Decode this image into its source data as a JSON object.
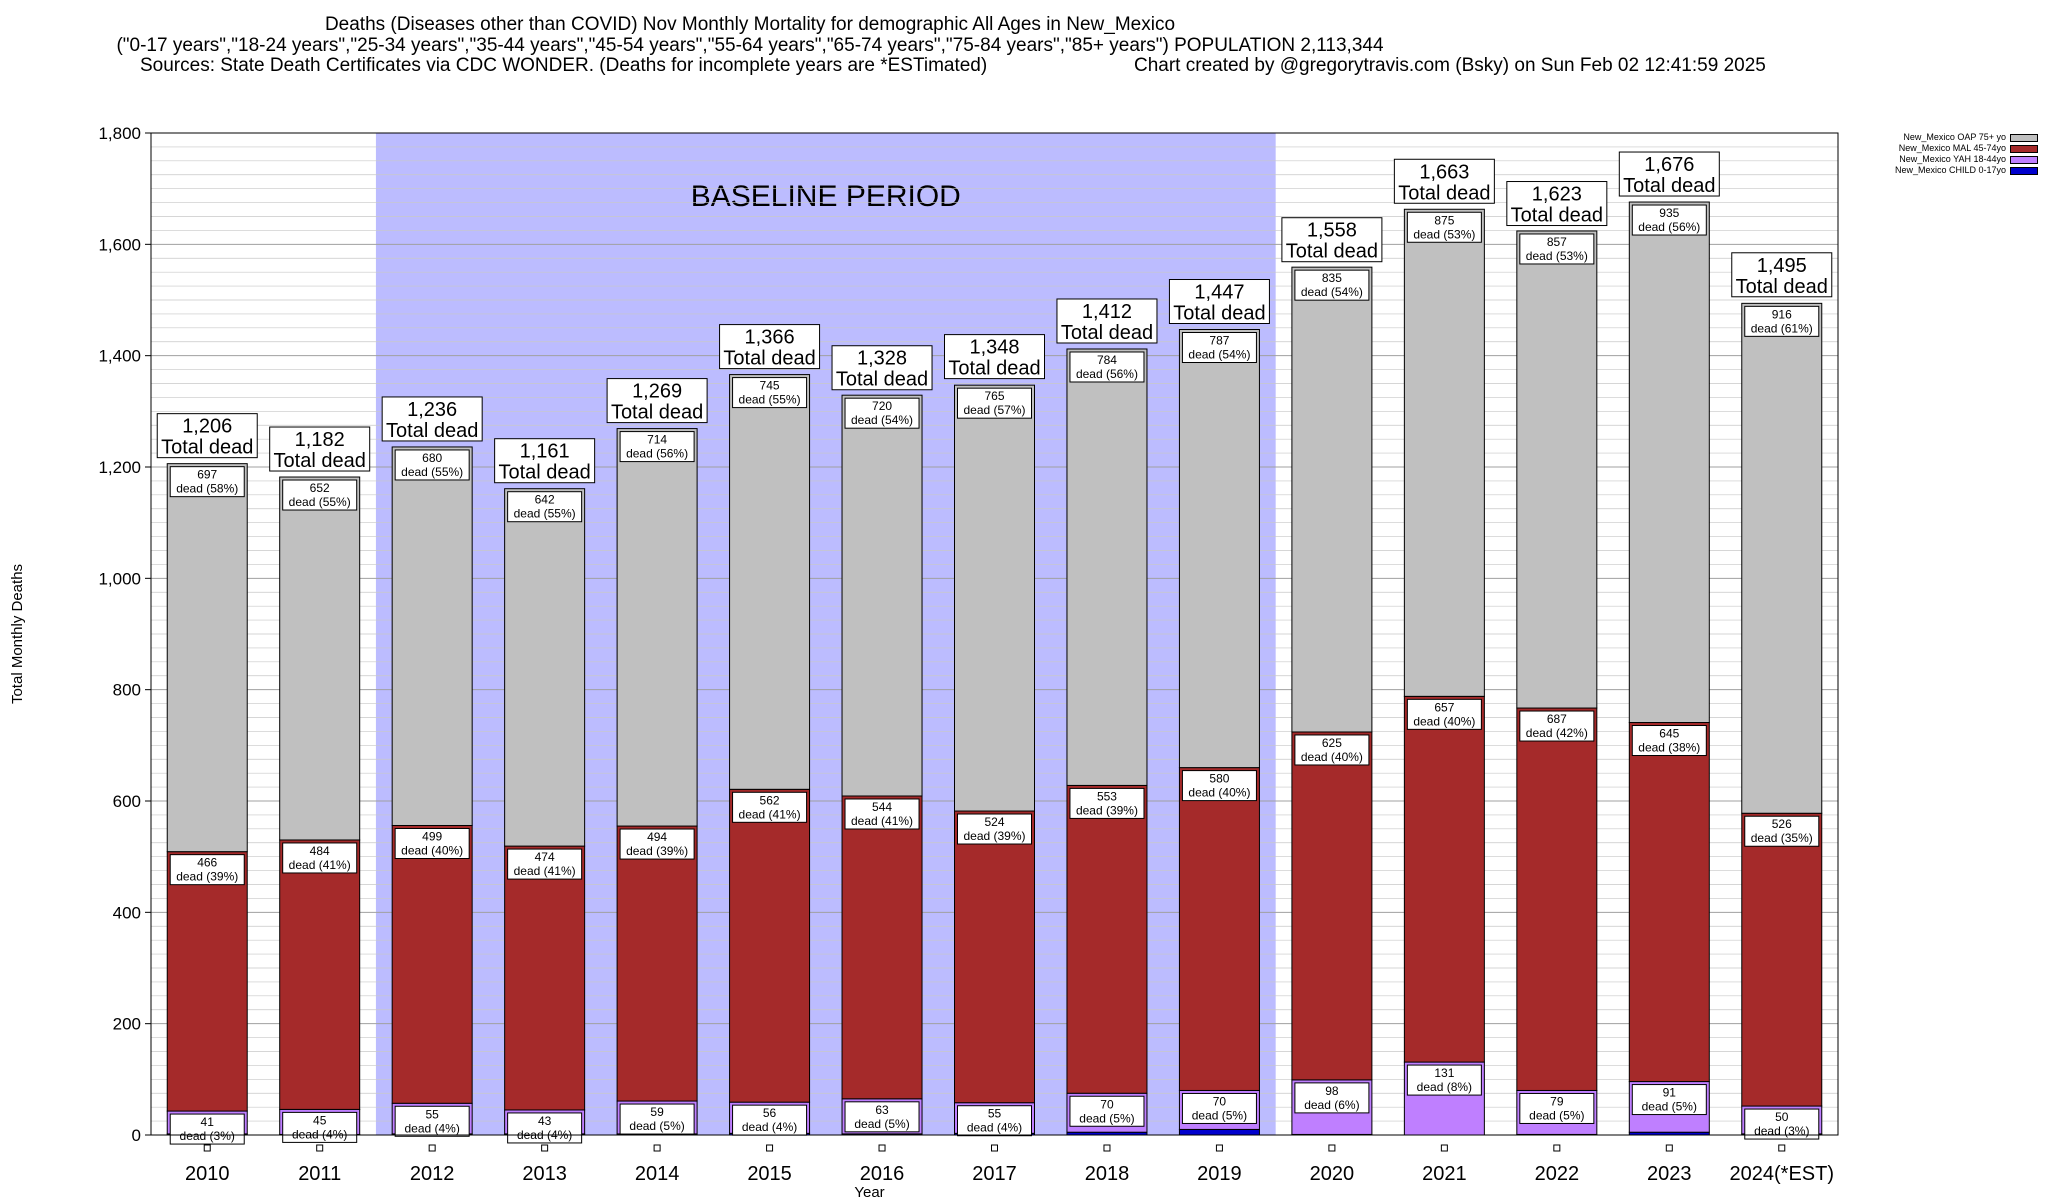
{
  "title": {
    "line1": "Deaths (Diseases other than COVID) Nov Monthly Mortality for demographic All Ages in New_Mexico",
    "line2": "(\"0-17 years\",\"18-24 years\",\"25-34 years\",\"35-44 years\",\"45-54 years\",\"55-64 years\",\"65-74 years\",\"75-84 years\",\"85+ years\") POPULATION 2,113,344",
    "line3": "Sources: State Death Certificates via CDC WONDER. (Deaths for incomplete years are *ESTimated)",
    "line4": "Chart created by @gregorytravis.com (Bsky) on Sun Feb 02 12:41:59 2025"
  },
  "legend": [
    {
      "label": "New_Mexico OAP 75+ yo",
      "color": "#c0c0c0"
    },
    {
      "label": "New_Mexico MAL 45-74yo",
      "color": "#a52a2a"
    },
    {
      "label": "New_Mexico YAH 18-44yo",
      "color": "#bf7fff"
    },
    {
      "label": "New_Mexico CHILD 0-17yo",
      "color": "#0000cd"
    }
  ],
  "colors": {
    "oap": "#c0c0c0",
    "mal": "#a52a2a",
    "yah": "#bf7fff",
    "child": "#0000cd",
    "baseline": "#bcbcff"
  },
  "chart_data": {
    "type": "bar",
    "stacked": true,
    "xlabel": "Year",
    "ylabel": "Total Monthly Deaths",
    "ylim": [
      0,
      1800
    ],
    "yticks": [
      0,
      200,
      400,
      600,
      800,
      1000,
      1200,
      1400,
      1600,
      1800
    ],
    "ytick_labels": [
      "0",
      "200",
      "400",
      "600",
      "800",
      "1,000",
      "1,200",
      "1,400",
      "1,600",
      "1,800"
    ],
    "grid": true,
    "legend_position": "top-right",
    "baseline_label": "BASELINE PERIOD",
    "baseline_range": [
      "2012",
      "2019"
    ],
    "total_suffix": "Total dead",
    "categories": [
      "2010",
      "2011",
      "2012",
      "2013",
      "2014",
      "2015",
      "2016",
      "2017",
      "2018",
      "2019",
      "2020",
      "2021",
      "2022",
      "2023",
      "2024(*EST)"
    ],
    "totals": [
      1206,
      1182,
      1236,
      1161,
      1269,
      1366,
      1328,
      1348,
      1412,
      1447,
      1558,
      1663,
      1623,
      1676,
      1495
    ],
    "total_labels": [
      "1,206",
      "1,182",
      "1,236",
      "1,161",
      "1,269",
      "1,366",
      "1,328",
      "1,348",
      "1,412",
      "1,447",
      "1,558",
      "1,663",
      "1,623",
      "1,676",
      "1,495"
    ],
    "series": [
      {
        "name": "New_Mexico CHILD 0-17yo",
        "values": [
          2,
          1,
          2,
          2,
          2,
          3,
          2,
          3,
          5,
          10,
          1,
          0,
          1,
          5,
          2
        ]
      },
      {
        "name": "New_Mexico YAH 18-44yo",
        "values": [
          41,
          45,
          55,
          43,
          59,
          56,
          63,
          55,
          70,
          70,
          98,
          131,
          79,
          91,
          50
        ],
        "labels": [
          "41\ndead (3%)",
          "45\ndead (4%)",
          "55\ndead (4%)",
          "43\ndead (4%)",
          "59\ndead (5%)",
          "56\ndead (4%)",
          "63\ndead (5%)",
          "55\ndead (4%)",
          "70\ndead (5%)",
          "70\ndead (5%)",
          "98\ndead (6%)",
          "131\ndead (8%)",
          "79\ndead (5%)",
          "91\ndead (5%)",
          "50\ndead (3%)"
        ]
      },
      {
        "name": "New_Mexico MAL 45-74yo",
        "values": [
          466,
          484,
          499,
          474,
          494,
          562,
          544,
          524,
          553,
          580,
          625,
          657,
          687,
          645,
          526
        ],
        "labels": [
          "466\ndead (39%)",
          "484\ndead (41%)",
          "499\ndead (40%)",
          "474\ndead (41%)",
          "494\ndead (39%)",
          "562\ndead (41%)",
          "544\ndead (41%)",
          "524\ndead (39%)",
          "553\ndead (39%)",
          "580\ndead (40%)",
          "625\ndead (40%)",
          "657\ndead (40%)",
          "687\ndead (42%)",
          "645\ndead (38%)",
          "526\ndead (35%)"
        ]
      },
      {
        "name": "New_Mexico OAP 75+ yo",
        "values": [
          697,
          652,
          680,
          642,
          714,
          745,
          720,
          765,
          784,
          787,
          835,
          875,
          857,
          935,
          916
        ],
        "labels": [
          "697\ndead (58%)",
          "652\ndead (55%)",
          "680\ndead (55%)",
          "642\ndead (55%)",
          "714\ndead (56%)",
          "745\ndead (55%)",
          "720\ndead (54%)",
          "765\ndead (57%)",
          "784\ndead (56%)",
          "787\ndead (54%)",
          "835\ndead (54%)",
          "875\ndead (53%)",
          "857\ndead (53%)",
          "935\ndead (56%)",
          "916\ndead (61%)"
        ]
      }
    ]
  }
}
